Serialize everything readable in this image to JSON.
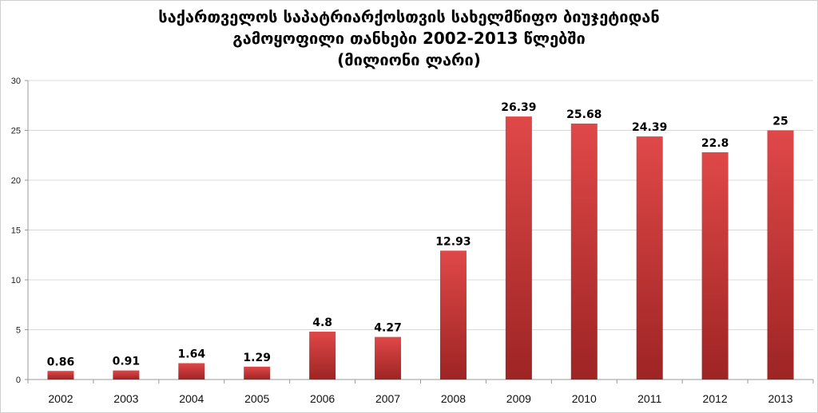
{
  "chart_data": {
    "type": "bar",
    "title_lines": [
      "საქართველოს საპატრიარქოსთვის სახელმწიფო ბიუჯეტიდან",
      "გამოყოფილი თანხები 2002-2013 წლებში",
      "(მილიონი ლარი)"
    ],
    "categories": [
      "2002",
      "2003",
      "2004",
      "2005",
      "2006",
      "2007",
      "2008",
      "2009",
      "2010",
      "2011",
      "2012",
      "2013"
    ],
    "values": [
      0.86,
      0.91,
      1.64,
      1.29,
      4.8,
      4.27,
      12.93,
      26.39,
      25.68,
      24.39,
      22.8,
      25
    ],
    "value_labels": [
      "0.86",
      "0.91",
      "1.64",
      "1.29",
      "4.8",
      "4.27",
      "12.93",
      "26.39",
      "25.68",
      "24.39",
      "22.8",
      "25"
    ],
    "y_ticks": [
      "0",
      "5",
      "10",
      "15",
      "20",
      "25",
      "30"
    ],
    "ylim": [
      0,
      30
    ],
    "grid": true,
    "legend": "none",
    "bar_color_light": "#e04848",
    "bar_color_dark": "#9e2424"
  }
}
